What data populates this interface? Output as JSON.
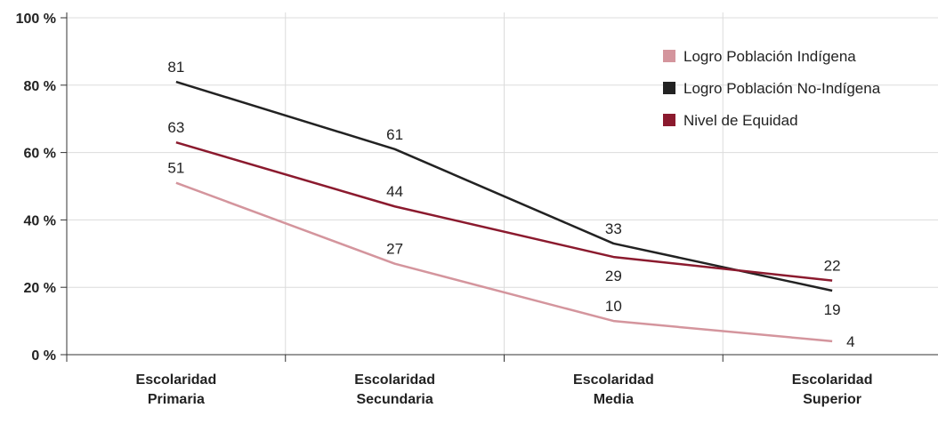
{
  "chart_data": {
    "type": "line",
    "categories": [
      [
        "Escolaridad",
        "Primaria"
      ],
      [
        "Escolaridad",
        "Secundaria"
      ],
      [
        "Escolaridad",
        "Media"
      ],
      [
        "Escolaridad",
        "Superior"
      ]
    ],
    "y_ticks": [
      0,
      20,
      40,
      60,
      80,
      100
    ],
    "y_tick_labels": [
      "0 %",
      "20 %",
      "40 %",
      "60 %",
      "80 %",
      "100 %"
    ],
    "ylim": [
      0,
      100
    ],
    "grid": true,
    "legend_position": "top-right",
    "series": [
      {
        "name": "Logro Población Indígena",
        "color": "#d4959d",
        "values": [
          51,
          27,
          10,
          4
        ],
        "label_pos": [
          "above",
          "above",
          "above",
          "right"
        ]
      },
      {
        "name": "Logro Población No-Indígena",
        "color": "#222222",
        "values": [
          81,
          61,
          33,
          19
        ],
        "label_pos": [
          "above",
          "above",
          "above",
          "below"
        ]
      },
      {
        "name": "Nivel de Equidad",
        "color": "#8b1a2e",
        "values": [
          63,
          44,
          29,
          22
        ],
        "label_pos": [
          "above",
          "above",
          "below",
          "above"
        ]
      }
    ]
  }
}
